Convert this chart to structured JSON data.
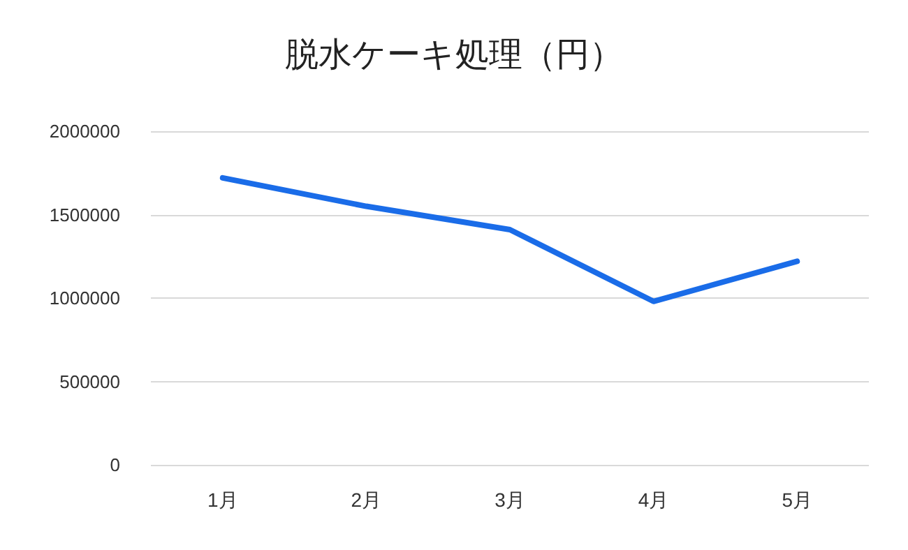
{
  "chart_data": {
    "type": "line",
    "title": "脱水ケーキ処理（円）",
    "categories": [
      "1月",
      "2月",
      "3月",
      "4月",
      "5月"
    ],
    "series": [
      {
        "color": "#1a6ce8",
        "values": [
          1720000,
          1550000,
          1410000,
          980000,
          1220000
        ]
      }
    ],
    "ylim": [
      0,
      2000000
    ],
    "yticks": [
      0,
      500000,
      1000000,
      1500000,
      2000000
    ],
    "grid": "y",
    "marker": "none",
    "line_style": "solid"
  }
}
